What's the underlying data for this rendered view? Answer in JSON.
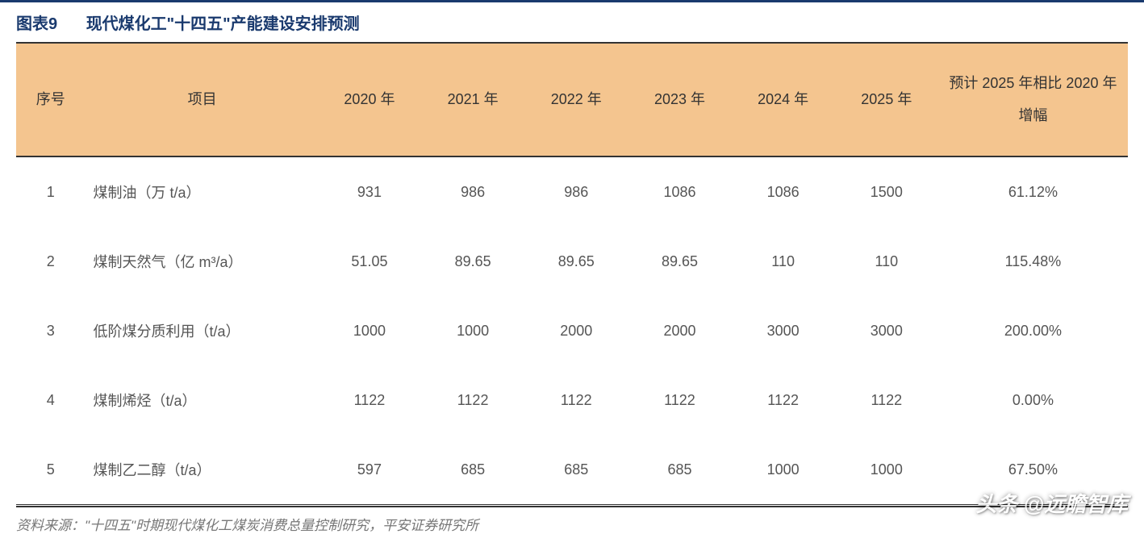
{
  "title": {
    "label": "图表9",
    "text": "现代煤化工\"十四五\"产能建设安排预测"
  },
  "table": {
    "type": "table",
    "header_bg": "#f4c58f",
    "border_color": "#333333",
    "text_color": "#555555",
    "title_color": "#1a3a6e",
    "columns": [
      "序号",
      "项目",
      "2020 年",
      "2021 年",
      "2022 年",
      "2023 年",
      "2024 年",
      "2025 年",
      "预计 2025 年相比 2020 年增幅"
    ],
    "rows": [
      {
        "seq": "1",
        "proj": "煤制油（万 t/a）",
        "y2020": "931",
        "y2021": "986",
        "y2022": "986",
        "y2023": "1086",
        "y2024": "1086",
        "y2025": "1500",
        "growth": "61.12%"
      },
      {
        "seq": "2",
        "proj": "煤制天然气（亿 m³/a）",
        "y2020": "51.05",
        "y2021": "89.65",
        "y2022": "89.65",
        "y2023": "89.65",
        "y2024": "110",
        "y2025": "110",
        "growth": "115.48%"
      },
      {
        "seq": "3",
        "proj": "低阶煤分质利用（t/a）",
        "y2020": "1000",
        "y2021": "1000",
        "y2022": "2000",
        "y2023": "2000",
        "y2024": "3000",
        "y2025": "3000",
        "growth": "200.00%"
      },
      {
        "seq": "4",
        "proj": "煤制烯烃（t/a）",
        "y2020": "1122",
        "y2021": "1122",
        "y2022": "1122",
        "y2023": "1122",
        "y2024": "1122",
        "y2025": "1122",
        "growth": "0.00%"
      },
      {
        "seq": "5",
        "proj": "煤制乙二醇（t/a）",
        "y2020": "597",
        "y2021": "685",
        "y2022": "685",
        "y2023": "685",
        "y2024": "1000",
        "y2025": "1000",
        "growth": "67.50%"
      }
    ]
  },
  "source": "资料来源：\"十四五\"时期现代煤化工煤炭消费总量控制研究，平安证券研究所",
  "watermark": "头条 @远瞻智库"
}
